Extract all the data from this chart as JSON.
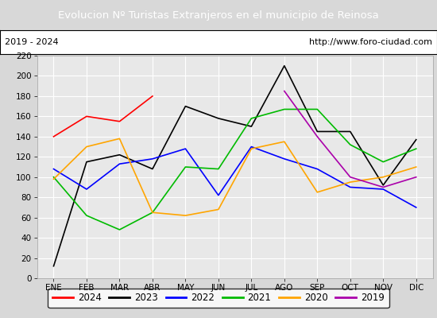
{
  "title": "Evolucion Nº Turistas Extranjeros en el municipio de Reinosa",
  "subtitle_left": "2019 - 2024",
  "subtitle_right": "http://www.foro-ciudad.com",
  "title_bg_color": "#4d7abf",
  "title_text_color": "#ffffff",
  "ylim": [
    0,
    220
  ],
  "yticks": [
    0,
    20,
    40,
    60,
    80,
    100,
    120,
    140,
    160,
    180,
    200,
    220
  ],
  "months": [
    "ENE",
    "FEB",
    "MAR",
    "ABR",
    "MAY",
    "JUN",
    "JUL",
    "AGO",
    "SEP",
    "OCT",
    "NOV",
    "DIC"
  ],
  "series": {
    "2024": {
      "color": "#ff0000",
      "values": [
        140,
        160,
        155,
        180,
        null,
        null,
        null,
        null,
        null,
        null,
        null,
        null
      ]
    },
    "2023": {
      "color": "#000000",
      "values": [
        12,
        115,
        122,
        108,
        170,
        158,
        150,
        210,
        145,
        145,
        92,
        137
      ]
    },
    "2022": {
      "color": "#0000ff",
      "values": [
        108,
        88,
        113,
        118,
        128,
        82,
        130,
        118,
        108,
        90,
        88,
        70
      ]
    },
    "2021": {
      "color": "#00bb00",
      "values": [
        100,
        62,
        48,
        65,
        110,
        108,
        158,
        167,
        167,
        132,
        115,
        128
      ]
    },
    "2020": {
      "color": "#ffa500",
      "values": [
        98,
        130,
        138,
        65,
        62,
        68,
        128,
        135,
        85,
        95,
        100,
        110
      ]
    },
    "2019": {
      "color": "#aa00aa",
      "values": [
        null,
        null,
        null,
        null,
        null,
        null,
        null,
        185,
        140,
        100,
        90,
        100
      ]
    }
  },
  "legend_order": [
    "2024",
    "2023",
    "2022",
    "2021",
    "2020",
    "2019"
  ],
  "plot_bg_color": "#e8e8e8",
  "grid_color": "#ffffff",
  "outer_bg": "#d8d8d8"
}
